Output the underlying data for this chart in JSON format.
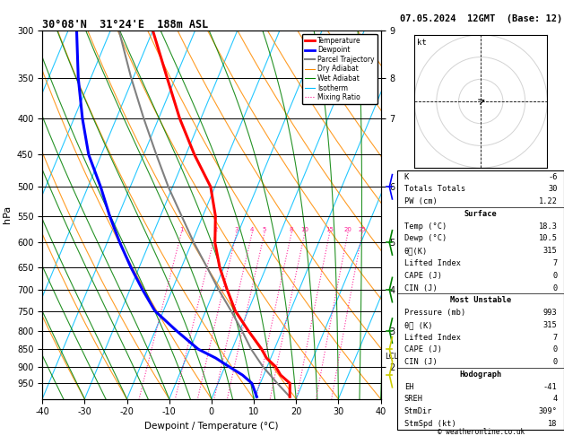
{
  "title_left": "30°08'N  31°24'E  188m ASL",
  "title_right": "07.05.2024  12GMT  (Base: 12)",
  "xlabel": "Dewpoint / Temperature (°C)",
  "ylabel_left": "hPa",
  "pressure_levels": [
    300,
    350,
    400,
    450,
    500,
    550,
    600,
    650,
    700,
    750,
    800,
    850,
    900,
    950
  ],
  "xmin": -40,
  "xmax": 40,
  "pmin": 300,
  "pmax": 1000,
  "temp_color": "#FF0000",
  "dewp_color": "#0000FF",
  "parcel_color": "#808080",
  "dryadiabat_color": "#FF8C00",
  "wetadiabat_color": "#008000",
  "isotherm_color": "#00BFFF",
  "mixratio_color": "#FF1493",
  "legend_items": [
    {
      "label": "Temperature",
      "color": "#FF0000",
      "lw": 2.0,
      "ls": "-"
    },
    {
      "label": "Dewpoint",
      "color": "#0000FF",
      "lw": 2.0,
      "ls": "-"
    },
    {
      "label": "Parcel Trajectory",
      "color": "#808080",
      "lw": 1.5,
      "ls": "-"
    },
    {
      "label": "Dry Adiabat",
      "color": "#FF8C00",
      "lw": 0.8,
      "ls": "-"
    },
    {
      "label": "Wet Adiabat",
      "color": "#008000",
      "lw": 0.8,
      "ls": "-"
    },
    {
      "label": "Isotherm",
      "color": "#00BFFF",
      "lw": 0.8,
      "ls": "-"
    },
    {
      "label": "Mixing Ratio",
      "color": "#FF1493",
      "lw": 0.8,
      "ls": ":"
    }
  ],
  "sounding_pressure": [
    993,
    950,
    925,
    900,
    875,
    850,
    800,
    750,
    700,
    650,
    600,
    550,
    500,
    450,
    400,
    350,
    300
  ],
  "sounding_temp": [
    18.3,
    17.0,
    14.0,
    12.0,
    9.0,
    7.0,
    2.0,
    -3.0,
    -7.0,
    -11.0,
    -14.5,
    -17.0,
    -21.0,
    -28.0,
    -35.0,
    -42.0,
    -50.0
  ],
  "sounding_dewp": [
    10.5,
    8.0,
    5.0,
    1.0,
    -3.0,
    -8.0,
    -15.0,
    -22.0,
    -27.0,
    -32.0,
    -37.0,
    -42.0,
    -47.0,
    -53.0,
    -58.0,
    -63.0,
    -68.0
  ],
  "parcel_pressure": [
    993,
    950,
    900,
    850,
    800,
    750,
    700,
    650,
    600,
    550,
    500,
    450,
    400,
    350,
    300
  ],
  "parcel_temp": [
    18.3,
    14.0,
    9.0,
    4.5,
    0.5,
    -4.0,
    -9.0,
    -14.0,
    -19.5,
    -25.0,
    -31.0,
    -37.0,
    -43.5,
    -50.5,
    -58.0
  ],
  "mixing_ratios": [
    1,
    2,
    3,
    4,
    5,
    8,
    10,
    15,
    20,
    25
  ],
  "km_ticks_p": [
    300,
    350,
    400,
    500,
    600,
    700,
    800,
    900
  ],
  "km_ticks_lbl": [
    "9",
    "8",
    "7",
    "6",
    "5",
    "4",
    "3",
    "2"
  ],
  "lcl_p": 870,
  "skew_factor": 30,
  "info_rows": [
    {
      "k": "K",
      "v": "-6",
      "header": false
    },
    {
      "k": "Totals Totals",
      "v": "30",
      "header": false
    },
    {
      "k": "PW (cm)",
      "v": "1.22",
      "header": false
    },
    {
      "k": "Surface",
      "v": "",
      "header": true
    },
    {
      "k": "Temp (°C)",
      "v": "18.3",
      "header": false
    },
    {
      "k": "Dewp (°C)",
      "v": "10.5",
      "header": false
    },
    {
      "k": "θᴄ(K)",
      "v": "315",
      "header": false
    },
    {
      "k": "Lifted Index",
      "v": "7",
      "header": false
    },
    {
      "k": "CAPE (J)",
      "v": "0",
      "header": false
    },
    {
      "k": "CIN (J)",
      "v": "0",
      "header": false
    },
    {
      "k": "Most Unstable",
      "v": "",
      "header": true
    },
    {
      "k": "Pressure (mb)",
      "v": "993",
      "header": false
    },
    {
      "k": "θᴄ (K)",
      "v": "315",
      "header": false
    },
    {
      "k": "Lifted Index",
      "v": "7",
      "header": false
    },
    {
      "k": "CAPE (J)",
      "v": "0",
      "header": false
    },
    {
      "k": "CIN (J)",
      "v": "0",
      "header": false
    },
    {
      "k": "Hodograph",
      "v": "",
      "header": true
    },
    {
      "k": "EH",
      "v": "-41",
      "header": false
    },
    {
      "k": "SREH",
      "v": "4",
      "header": false
    },
    {
      "k": "StmDir",
      "v": "309°",
      "header": false
    },
    {
      "k": "StmSpd (kt)",
      "v": "18",
      "header": false
    }
  ],
  "watermark": "© weatheronline.co.uk",
  "wind_barb_pressures": [
    500,
    600,
    700,
    800,
    850,
    925
  ],
  "wind_barb_colors": [
    "#0000FF",
    "#008000",
    "#008000",
    "#008000",
    "#CCCC00",
    "#CCCC00"
  ]
}
